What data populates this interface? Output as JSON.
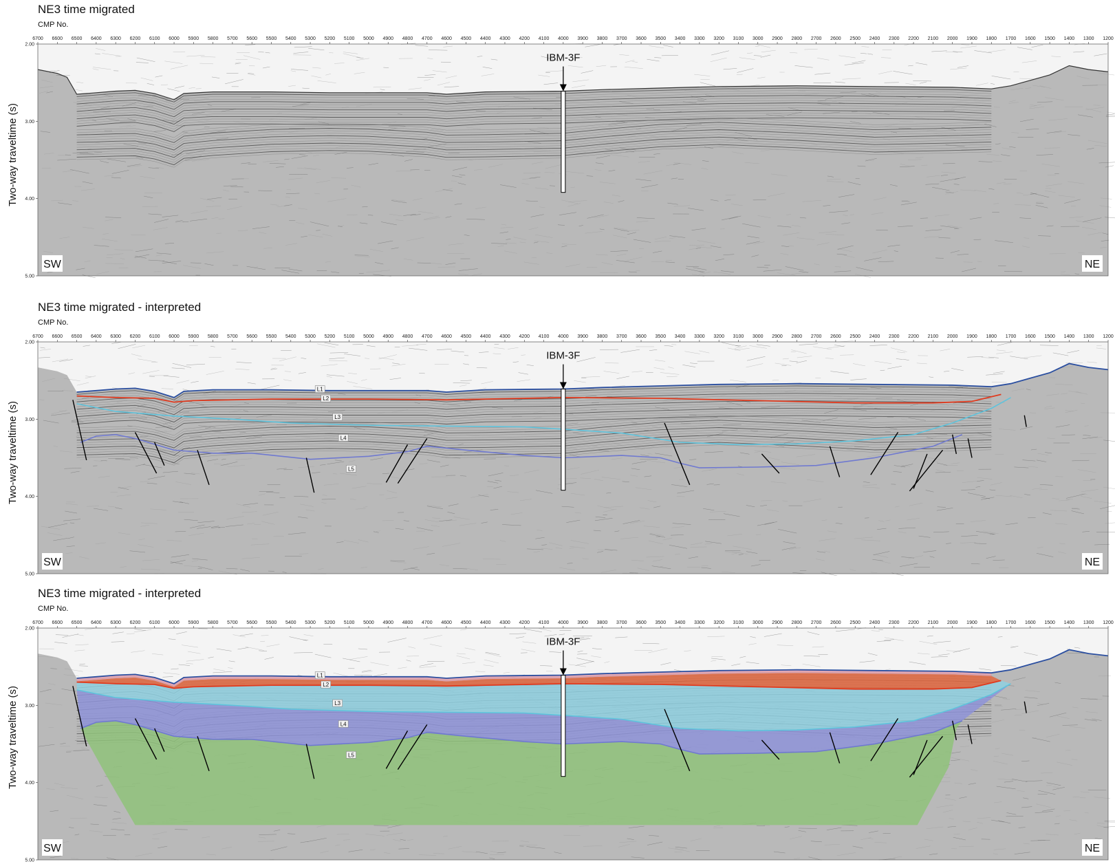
{
  "panels": [
    {
      "title": "NE3 time migrated",
      "interpreted": false,
      "filled": false
    },
    {
      "title": "NE3 time migrated - interpreted",
      "interpreted": true,
      "filled": false
    },
    {
      "title": "NE3 time migrated - interpreted",
      "interpreted": true,
      "filled": true
    }
  ],
  "axis": {
    "x_title": "CMP No.",
    "y_title": "Two-way traveltime (s)",
    "x_ticks": [
      "6700",
      "6600",
      "6500",
      "6400",
      "6300",
      "6200",
      "6100",
      "6000",
      "5900",
      "5800",
      "5700",
      "5600",
      "5500",
      "5400",
      "5300",
      "5200",
      "5100",
      "5000",
      "4900",
      "4800",
      "4700",
      "4600",
      "4500",
      "4400",
      "4300",
      "4200",
      "4100",
      "4000",
      "3900",
      "3800",
      "3700",
      "3600",
      "3500",
      "3400",
      "3300",
      "3200",
      "3100",
      "3000",
      "2900",
      "2800",
      "2700",
      "2600",
      "2500",
      "2400",
      "2300",
      "2200",
      "2100",
      "2000",
      "1900",
      "1800",
      "1700",
      "1600",
      "1500",
      "1400",
      "1300",
      "1200"
    ],
    "y_ticks": [
      "2.00",
      "3.00",
      "4.00",
      "5.00"
    ]
  },
  "well": {
    "name": "IBM-3F",
    "cmp": "4000"
  },
  "directions": {
    "left": "SW",
    "right": "NE"
  },
  "horizons": [
    "L1",
    "L2",
    "L3",
    "L4",
    "L5"
  ],
  "colors": {
    "L1": "#e9a6b4",
    "L2": "#e0663e",
    "L3": "#8fd0e0",
    "L4": "#8e93d8",
    "L5": "#8fc27a",
    "seafloor_line": "#2b4fa0",
    "L2_line": "#e03a1e",
    "L3_line": "#5ec3dc",
    "L4_line": "#6f79d0"
  }
}
